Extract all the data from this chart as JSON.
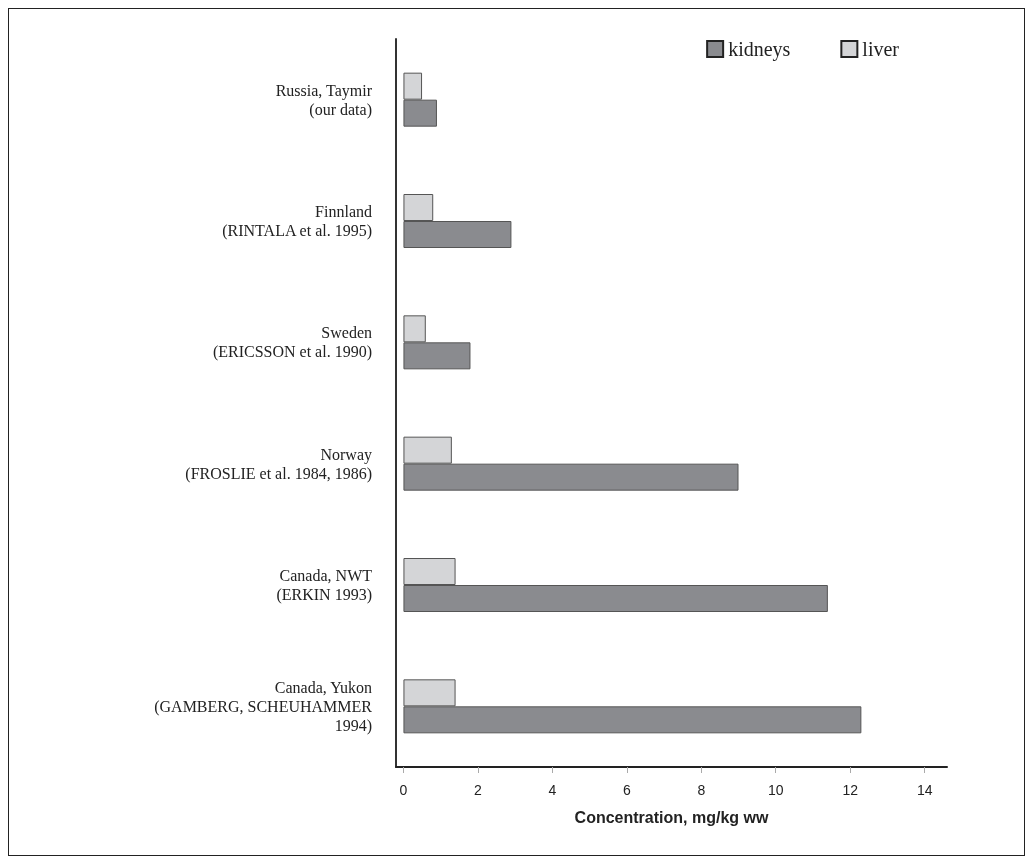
{
  "chart_data": {
    "type": "bar",
    "orientation": "horizontal",
    "xlabel": "Concentration, mg/kg ww",
    "categories": [
      "Russia, Taymir\n(our data)",
      "Finnland\n(RINTALA et al. 1995)",
      "Sweden\n(ERICSSON et al. 1990)",
      "Norway\n(FROSLIE et al. 1984, 1986)",
      "Canada, NWT\n(ERKIN 1993)",
      "Canada, Yukon\n(GAMBERG, SCHEUHAMMER\n1994)"
    ],
    "series": [
      {
        "name": "kidneys",
        "color": "#8a8b8f",
        "values": [
          0.9,
          2.9,
          1.8,
          9.0,
          11.4,
          12.3
        ]
      },
      {
        "name": "liver",
        "color": "#d4d5d7",
        "values": [
          0.5,
          0.8,
          0.6,
          1.3,
          1.4,
          1.4
        ]
      }
    ],
    "xlim": [
      -0.2,
      14.6
    ],
    "xticks": [
      0,
      2,
      4,
      6,
      8,
      10,
      12,
      14
    ],
    "grid": false,
    "legend": "top right"
  }
}
